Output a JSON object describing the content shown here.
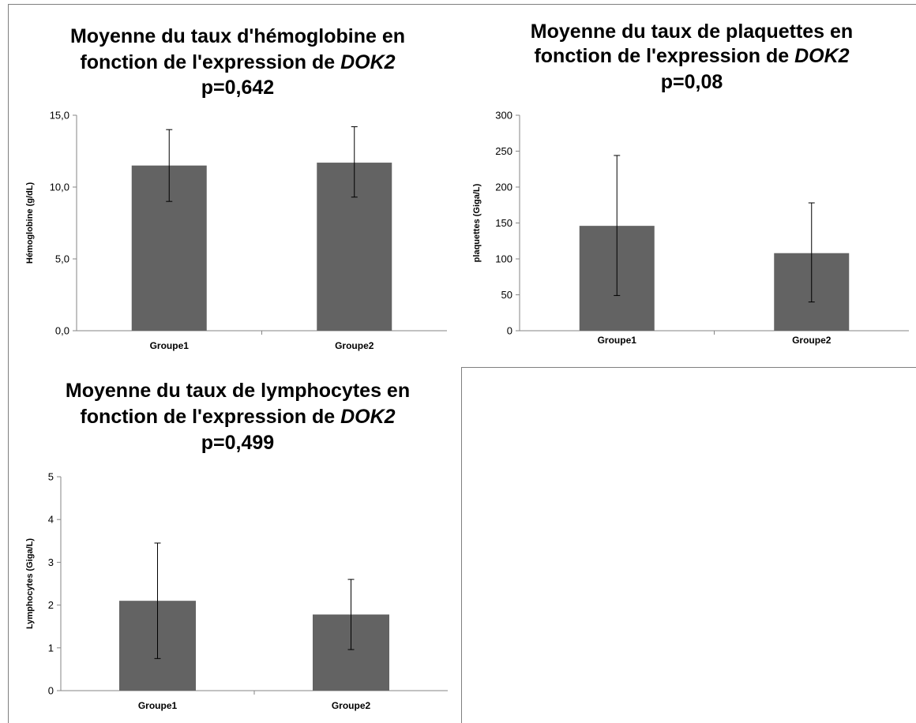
{
  "colors": {
    "bar": "#636363",
    "axis": "#868686",
    "error": "#000000",
    "border": "#7f7f7f"
  },
  "chart_data": [
    {
      "type": "bar",
      "title_line1": "Moyenne du taux d'hémoglobine en",
      "title_line2_prefix": "fonction de l'expression de ",
      "title_line2_italic": "DOK2",
      "title_line3": "p=0,642",
      "ylabel": "Hémoglobine (g/dL)",
      "categories": [
        "Groupe1",
        "Groupe2"
      ],
      "values": [
        11.5,
        11.7
      ],
      "error_low": [
        9.0,
        9.3
      ],
      "error_high": [
        14.0,
        14.2
      ],
      "ylim": [
        0,
        15
      ],
      "yticks": [
        0,
        5,
        10,
        15
      ],
      "ytick_labels": [
        "0,0",
        "5,0",
        "10,0",
        "15,0"
      ]
    },
    {
      "type": "bar",
      "title_line1": "Moyenne du taux de plaquettes en",
      "title_line2_prefix": "fonction de l'expression de ",
      "title_line2_italic": "DOK2",
      "title_line3": "p=0,08",
      "ylabel": "plaquettes (Giga/L)",
      "categories": [
        "Groupe1",
        "Groupe2"
      ],
      "values": [
        146,
        108
      ],
      "error_low": [
        49,
        40
      ],
      "error_high": [
        244,
        178
      ],
      "ylim": [
        0,
        300
      ],
      "yticks": [
        0,
        50,
        100,
        150,
        200,
        250,
        300
      ],
      "ytick_labels": [
        "0",
        "50",
        "100",
        "150",
        "200",
        "250",
        "300"
      ]
    },
    {
      "type": "bar",
      "title_line1": "Moyenne du taux de lymphocytes en",
      "title_line2_prefix": "fonction de l'expression de ",
      "title_line2_italic": "DOK2",
      "title_line3": "p=0,499",
      "ylabel": "Lymphocytes (Giga/L)",
      "categories": [
        "Groupe1",
        "Groupe2"
      ],
      "values": [
        2.1,
        1.78
      ],
      "error_low": [
        0.75,
        0.96
      ],
      "error_high": [
        3.45,
        2.6
      ],
      "ylim": [
        0,
        5
      ],
      "yticks": [
        0,
        1,
        2,
        3,
        4,
        5
      ],
      "ytick_labels": [
        "0",
        "1",
        "2",
        "3",
        "4",
        "5"
      ]
    }
  ]
}
